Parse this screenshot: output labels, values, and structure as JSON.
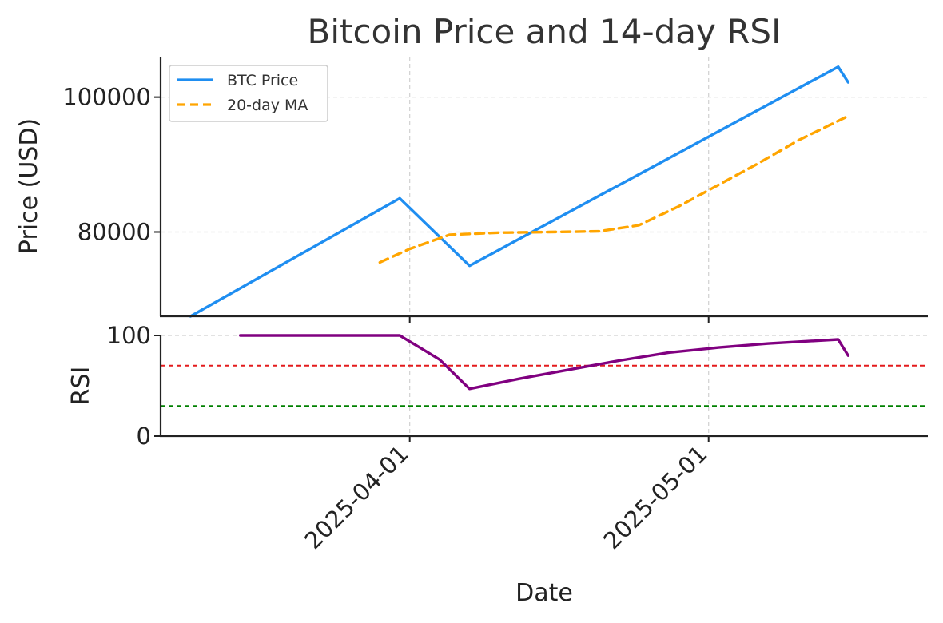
{
  "chart_data": {
    "title": "Bitcoin Price and 14-day RSI",
    "xlabel": "Date",
    "x_ticks": [
      "2025-04-01",
      "2025-05-01"
    ],
    "x_range": [
      "2025-03-07",
      "2025-05-23"
    ],
    "grid": true,
    "price_panel": {
      "type": "line",
      "ylabel": "Price (USD)",
      "ylim": [
        67500,
        106000
      ],
      "y_ticks": [
        80000,
        100000
      ],
      "legend_position": "top-left",
      "series": [
        {
          "name": "BTC Price",
          "color": "#1f8ef1",
          "points": [
            [
              "2025-03-10",
              67500
            ],
            [
              "2025-03-31",
              85000
            ],
            [
              "2025-04-07",
              75000
            ],
            [
              "2025-05-14",
              104500
            ],
            [
              "2025-05-15",
              102200
            ]
          ]
        },
        {
          "name": "20-day MA",
          "color": "#ffa500",
          "style": "dashed",
          "points": [
            [
              "2025-03-29",
              75500
            ],
            [
              "2025-04-01",
              77500
            ],
            [
              "2025-04-05",
              79600
            ],
            [
              "2025-04-10",
              79900
            ],
            [
              "2025-04-15",
              80000
            ],
            [
              "2025-04-20",
              80100
            ],
            [
              "2025-04-24",
              81000
            ],
            [
              "2025-04-28",
              83800
            ],
            [
              "2025-05-02",
              87000
            ],
            [
              "2025-05-06",
              90200
            ],
            [
              "2025-05-10",
              93600
            ],
            [
              "2025-05-15",
              97200
            ]
          ]
        }
      ]
    },
    "rsi_panel": {
      "type": "line",
      "ylabel": "RSI",
      "ylim": [
        0,
        100
      ],
      "y_ticks": [
        0,
        100
      ],
      "series": [
        {
          "name": "RSI",
          "color": "#800080",
          "points": [
            [
              "2025-03-15",
              100
            ],
            [
              "2025-03-31",
              100
            ],
            [
              "2025-04-01",
              94
            ],
            [
              "2025-04-02",
              88
            ],
            [
              "2025-04-04",
              76
            ],
            [
              "2025-04-07",
              47
            ],
            [
              "2025-04-12",
              57
            ],
            [
              "2025-04-17",
              66
            ],
            [
              "2025-04-22",
              75
            ],
            [
              "2025-04-27",
              83
            ],
            [
              "2025-05-02",
              88
            ],
            [
              "2025-05-07",
              92
            ],
            [
              "2025-05-14",
              96
            ],
            [
              "2025-05-15",
              80
            ]
          ]
        }
      ],
      "reference_lines": [
        {
          "value": 70,
          "color": "#e31a1c",
          "style": "dashed"
        },
        {
          "value": 30,
          "color": "#008000",
          "style": "dashed"
        }
      ]
    }
  }
}
